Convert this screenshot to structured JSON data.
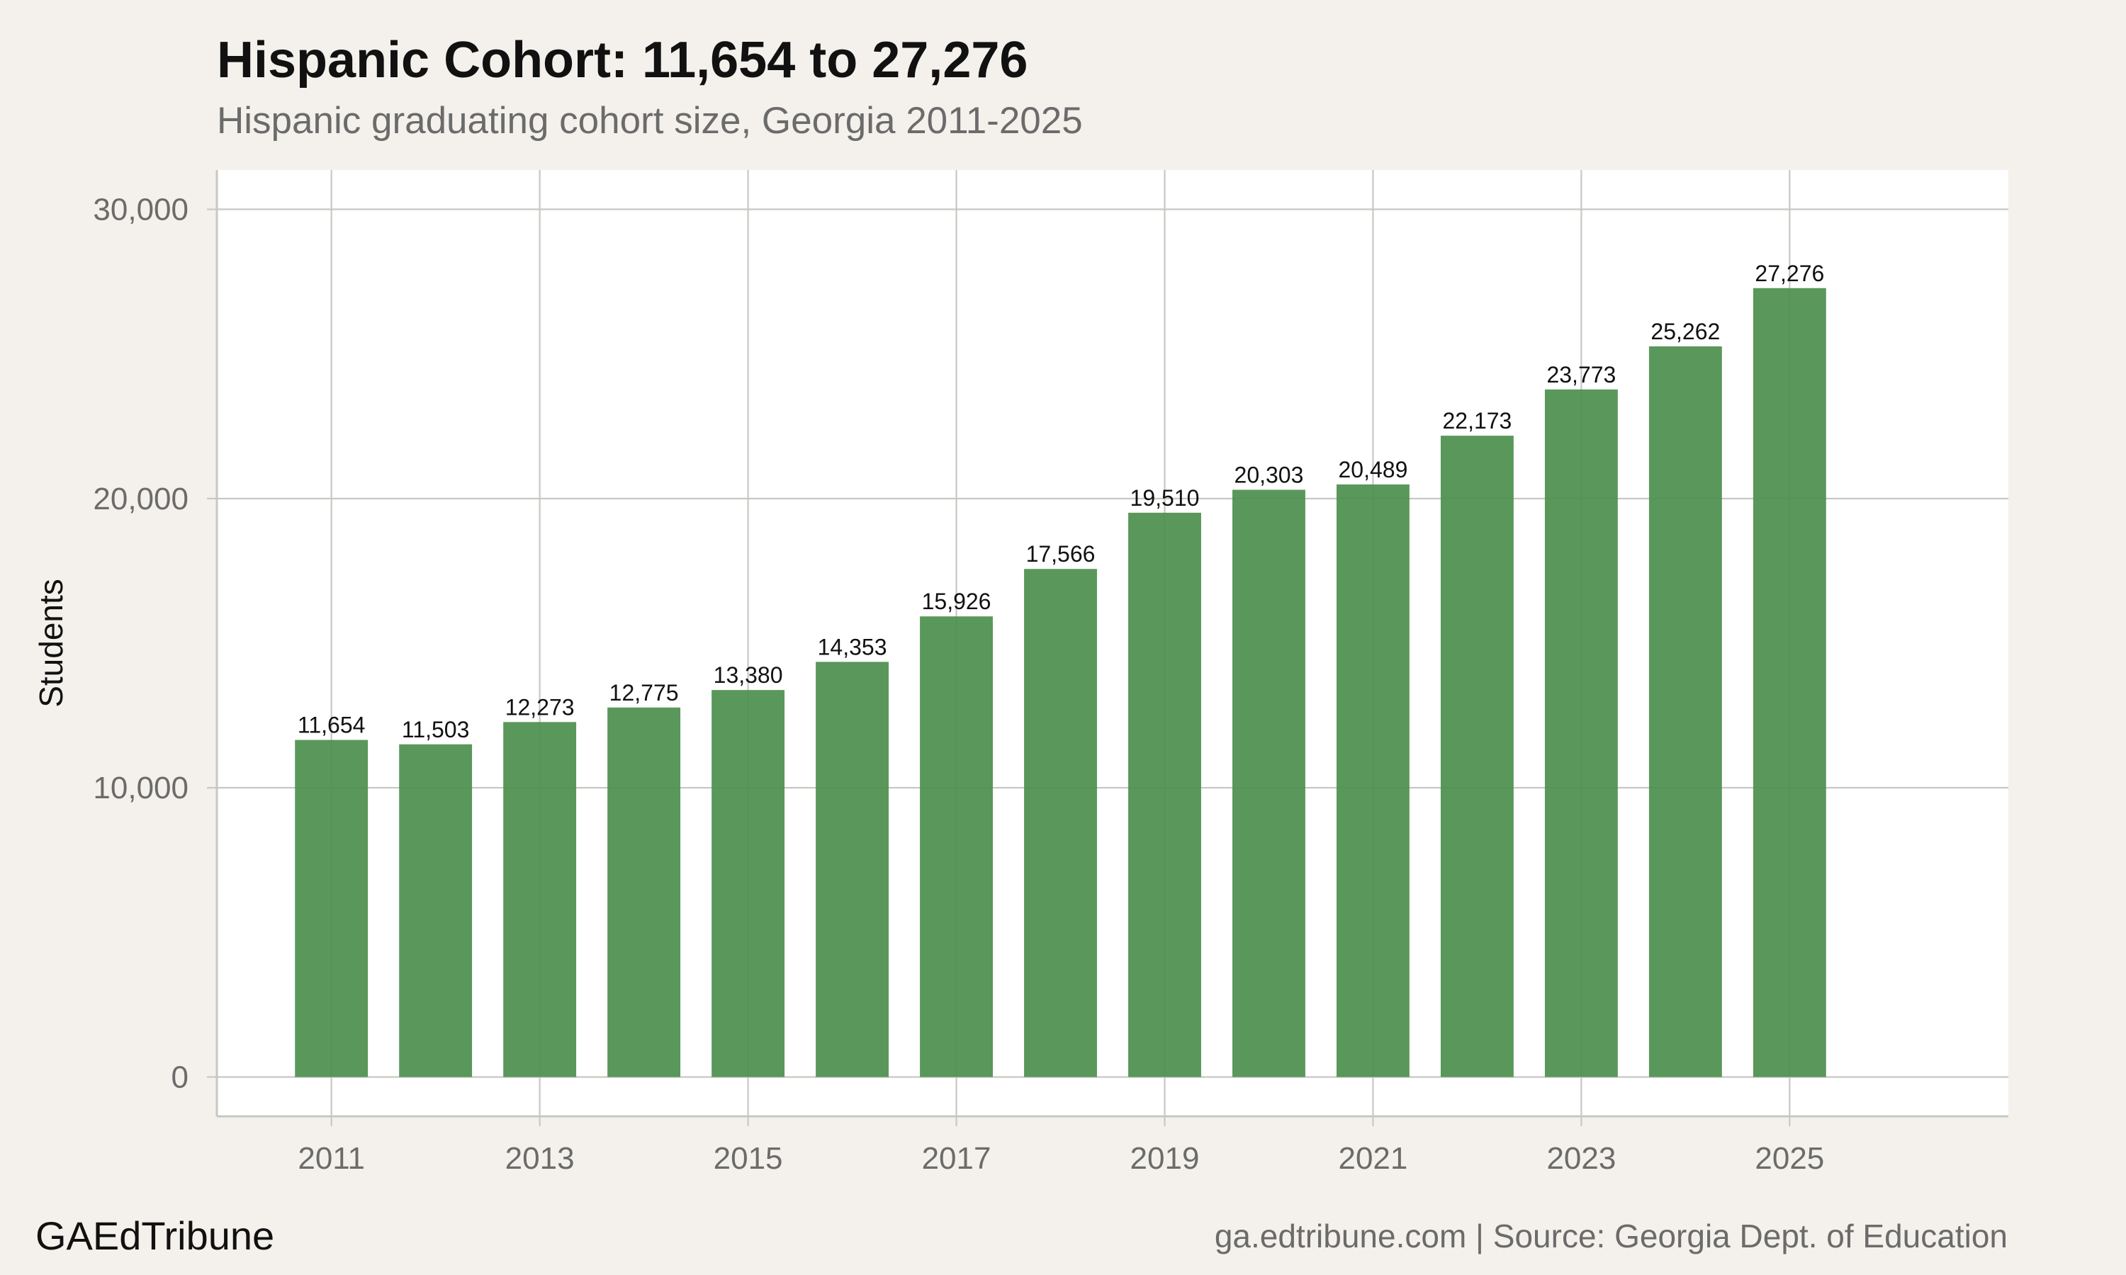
{
  "header": {
    "title": "Hispanic Cohort: 11,654 to 27,276",
    "subtitle": "Hispanic graduating cohort size, Georgia 2011-2025"
  },
  "footer": {
    "brand": "GAEdTribune",
    "source": "ga.edtribune.com | Source: Georgia Dept. of Education"
  },
  "colors": {
    "bar": "#4d8f4f",
    "panel": "#ffffff",
    "grid": "#c8c8c2",
    "background": "#f4f1ec"
  },
  "chart_data": {
    "type": "bar",
    "title": "Hispanic Cohort: 11,654 to 27,276",
    "subtitle": "Hispanic graduating cohort size, Georgia 2011-2025",
    "xlabel": "",
    "ylabel": "Students",
    "categories": [
      2011,
      2012,
      2013,
      2014,
      2015,
      2016,
      2017,
      2018,
      2019,
      2020,
      2021,
      2022,
      2023,
      2024,
      2025
    ],
    "values": [
      11654,
      11503,
      12273,
      12775,
      13380,
      14353,
      15926,
      17566,
      19510,
      20303,
      20489,
      22173,
      23773,
      25262,
      27276
    ],
    "data_labels": [
      "11,654",
      "11,503",
      "12,273",
      "12,775",
      "13,380",
      "14,353",
      "15,926",
      "17,566",
      "19,510",
      "20,303",
      "20,489",
      "22,173",
      "23,773",
      "25,262",
      "27,276"
    ],
    "x_ticks": [
      2011,
      2013,
      2015,
      2017,
      2019,
      2021,
      2023,
      2025
    ],
    "y_ticks": [
      0,
      10000,
      20000,
      30000
    ],
    "y_tick_labels": [
      "0",
      "10,000",
      "20,000",
      "30,000"
    ],
    "xlim": [
      2009.9,
      2027.1
    ],
    "ylim": [
      -1360,
      31360
    ],
    "grid": true,
    "legend": "none"
  }
}
